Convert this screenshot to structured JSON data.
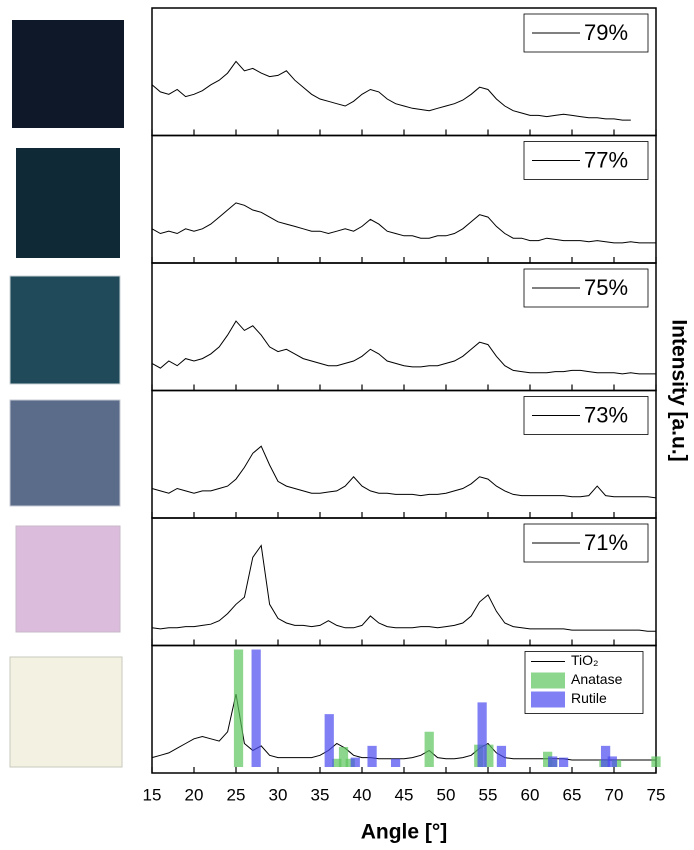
{
  "chart_data": [
    {
      "type": "line",
      "xlim": [
        15,
        75
      ],
      "xticks": [
        15,
        20,
        25,
        30,
        35,
        40,
        45,
        50,
        55,
        60,
        65,
        70,
        75
      ],
      "ylim": [
        0,
        100
      ],
      "x": [
        15,
        16,
        17,
        18,
        19,
        20,
        21,
        22,
        23,
        24,
        25,
        26,
        27,
        28,
        29,
        30,
        31,
        32,
        33,
        34,
        35,
        36,
        37,
        38,
        39,
        40,
        41,
        42,
        43,
        44,
        45,
        46,
        47,
        48,
        49,
        50,
        51,
        52,
        53,
        54,
        55,
        56,
        57,
        58,
        59,
        60,
        61,
        62,
        63,
        64,
        65,
        66,
        67,
        68,
        69,
        70,
        71,
        72,
        73,
        74,
        75
      ],
      "series": [
        {
          "name": "79%",
          "color": "#000000",
          "values": [
            38,
            32,
            30,
            34,
            28,
            30,
            33,
            38,
            42,
            48,
            58,
            50,
            52,
            48,
            45,
            46,
            50,
            42,
            36,
            30,
            26,
            24,
            22,
            20,
            24,
            30,
            34,
            32,
            26,
            22,
            20,
            18,
            17,
            16,
            18,
            20,
            22,
            25,
            30,
            36,
            34,
            26,
            20,
            16,
            14,
            12,
            12,
            11,
            12,
            13,
            12,
            11,
            10,
            10,
            9,
            9,
            8,
            8,
            null,
            null,
            null
          ]
        }
      ]
    },
    {
      "type": "line",
      "xlim": [
        15,
        75
      ],
      "xticks": [
        15,
        20,
        25,
        30,
        35,
        40,
        45,
        50,
        55,
        60,
        65,
        70,
        75
      ],
      "ylim": [
        0,
        100
      ],
      "x": [
        15,
        16,
        17,
        18,
        19,
        20,
        21,
        22,
        23,
        24,
        25,
        26,
        27,
        28,
        29,
        30,
        31,
        32,
        33,
        34,
        35,
        36,
        37,
        38,
        39,
        40,
        41,
        42,
        43,
        44,
        45,
        46,
        47,
        48,
        49,
        50,
        51,
        52,
        53,
        54,
        55,
        56,
        57,
        58,
        59,
        60,
        61,
        62,
        63,
        64,
        65,
        66,
        67,
        68,
        69,
        70,
        71,
        72,
        73,
        74,
        75
      ],
      "series": [
        {
          "name": "77%",
          "color": "#000000",
          "values": [
            24,
            20,
            22,
            20,
            24,
            22,
            24,
            28,
            34,
            40,
            46,
            44,
            40,
            38,
            34,
            30,
            28,
            26,
            24,
            22,
            22,
            20,
            22,
            24,
            22,
            26,
            32,
            28,
            22,
            20,
            18,
            18,
            16,
            16,
            18,
            18,
            20,
            24,
            30,
            36,
            34,
            26,
            20,
            16,
            16,
            14,
            14,
            16,
            15,
            14,
            14,
            14,
            13,
            14,
            13,
            12,
            12,
            13,
            12,
            12,
            12
          ]
        }
      ]
    },
    {
      "type": "line",
      "xlim": [
        15,
        75
      ],
      "xticks": [
        15,
        20,
        25,
        30,
        35,
        40,
        45,
        50,
        55,
        60,
        65,
        70,
        75
      ],
      "ylim": [
        0,
        100
      ],
      "x": [
        15,
        16,
        17,
        18,
        19,
        20,
        21,
        22,
        23,
        24,
        25,
        26,
        27,
        28,
        29,
        30,
        31,
        32,
        33,
        34,
        35,
        36,
        37,
        38,
        39,
        40,
        41,
        42,
        43,
        44,
        45,
        46,
        47,
        48,
        49,
        50,
        51,
        52,
        53,
        54,
        55,
        56,
        57,
        58,
        59,
        60,
        61,
        62,
        63,
        64,
        65,
        66,
        67,
        68,
        69,
        70,
        71,
        72,
        73,
        74,
        75
      ],
      "series": [
        {
          "name": "75%",
          "color": "#000000",
          "values": [
            18,
            14,
            20,
            16,
            22,
            20,
            22,
            26,
            32,
            42,
            54,
            46,
            50,
            42,
            32,
            28,
            30,
            26,
            22,
            20,
            18,
            16,
            16,
            18,
            20,
            24,
            30,
            26,
            20,
            18,
            16,
            15,
            15,
            16,
            16,
            18,
            20,
            24,
            30,
            36,
            34,
            24,
            16,
            12,
            11,
            10,
            10,
            10,
            11,
            11,
            12,
            12,
            11,
            10,
            10,
            10,
            9,
            10,
            9,
            9,
            9
          ]
        }
      ]
    },
    {
      "type": "line",
      "xlim": [
        15,
        75
      ],
      "xticks": [
        15,
        20,
        25,
        30,
        35,
        40,
        45,
        50,
        55,
        60,
        65,
        70,
        75
      ],
      "ylim": [
        0,
        100
      ],
      "x": [
        15,
        16,
        17,
        18,
        19,
        20,
        21,
        22,
        23,
        24,
        25,
        26,
        27,
        28,
        29,
        30,
        31,
        32,
        33,
        34,
        35,
        36,
        37,
        38,
        39,
        40,
        41,
        42,
        43,
        44,
        45,
        46,
        47,
        48,
        49,
        50,
        51,
        52,
        53,
        54,
        55,
        56,
        57,
        58,
        59,
        60,
        61,
        62,
        63,
        64,
        65,
        66,
        67,
        68,
        69,
        70,
        71,
        72,
        73,
        74,
        75
      ],
      "series": [
        {
          "name": "73%",
          "color": "#000000",
          "values": [
            20,
            18,
            16,
            20,
            18,
            16,
            18,
            18,
            20,
            22,
            28,
            38,
            50,
            56,
            40,
            26,
            22,
            20,
            18,
            16,
            16,
            17,
            18,
            22,
            30,
            22,
            18,
            16,
            16,
            15,
            15,
            15,
            14,
            15,
            15,
            16,
            18,
            20,
            24,
            30,
            28,
            22,
            18,
            15,
            14,
            14,
            14,
            14,
            14,
            14,
            13,
            13,
            14,
            22,
            14,
            13,
            13,
            13,
            13,
            13,
            12
          ]
        }
      ]
    },
    {
      "type": "line",
      "xlim": [
        15,
        75
      ],
      "xticks": [
        15,
        20,
        25,
        30,
        35,
        40,
        45,
        50,
        55,
        60,
        65,
        70,
        75
      ],
      "ylim": [
        0,
        100
      ],
      "x": [
        15,
        16,
        17,
        18,
        19,
        20,
        21,
        22,
        23,
        24,
        25,
        26,
        27,
        28,
        29,
        30,
        31,
        32,
        33,
        34,
        35,
        36,
        37,
        38,
        39,
        40,
        41,
        42,
        43,
        44,
        45,
        46,
        47,
        48,
        49,
        50,
        51,
        52,
        53,
        54,
        55,
        56,
        57,
        58,
        59,
        60,
        61,
        62,
        63,
        64,
        65,
        66,
        67,
        68,
        69,
        70,
        71,
        72,
        73,
        74,
        75
      ],
      "series": [
        {
          "name": "71%",
          "color": "#000000",
          "values": [
            10,
            9,
            10,
            10,
            11,
            11,
            12,
            13,
            16,
            22,
            30,
            36,
            70,
            80,
            30,
            18,
            14,
            12,
            12,
            11,
            12,
            16,
            12,
            10,
            10,
            12,
            20,
            14,
            11,
            10,
            10,
            10,
            11,
            11,
            10,
            11,
            12,
            14,
            20,
            32,
            38,
            24,
            14,
            11,
            10,
            9,
            9,
            9,
            9,
            9,
            8,
            8,
            8,
            8,
            8,
            8,
            8,
            8,
            8,
            7,
            7
          ]
        }
      ]
    },
    {
      "type": "line",
      "xlim": [
        15,
        75
      ],
      "xticks": [
        15,
        20,
        25,
        30,
        35,
        40,
        45,
        50,
        55,
        60,
        65,
        70,
        75
      ],
      "ylim": [
        0,
        100
      ],
      "xlabel": "Angle [°]",
      "ylabel": "Intensity [a.u.]",
      "x": [
        15,
        16,
        17,
        18,
        19,
        20,
        21,
        22,
        23,
        24,
        25,
        26,
        27,
        28,
        29,
        30,
        31,
        32,
        33,
        34,
        35,
        36,
        37,
        38,
        39,
        40,
        41,
        42,
        43,
        44,
        45,
        46,
        47,
        48,
        49,
        50,
        51,
        52,
        53,
        54,
        55,
        56,
        57,
        58,
        59,
        60,
        61,
        62,
        63,
        64,
        65,
        66,
        67,
        68,
        69,
        70,
        71,
        72,
        73,
        74,
        75
      ],
      "series": [
        {
          "name": "TiO₂",
          "color": "#000000",
          "values": [
            8,
            10,
            12,
            16,
            20,
            24,
            26,
            24,
            22,
            30,
            62,
            20,
            14,
            18,
            10,
            8,
            8,
            8,
            8,
            8,
            10,
            14,
            20,
            16,
            10,
            8,
            8,
            7,
            7,
            7,
            7,
            8,
            10,
            14,
            8,
            7,
            7,
            8,
            10,
            16,
            20,
            12,
            8,
            7,
            7,
            7,
            7,
            7,
            7,
            7,
            6,
            6,
            6,
            6,
            6,
            6,
            6,
            6,
            6,
            6,
            6
          ]
        },
        {
          "name": "Anatase",
          "type": "bar",
          "color": "#5cc45c",
          "x": [
            25.3,
            37.0,
            37.8,
            38.6,
            48.0,
            53.9,
            55.1,
            62.1,
            62.7,
            68.8,
            70.3,
            75.0
          ],
          "values": [
            100,
            7,
            17,
            7,
            30,
            19,
            19,
            13,
            6,
            6,
            6,
            9
          ]
        },
        {
          "name": "Rutile",
          "type": "bar",
          "color": "#4a4af0",
          "x": [
            27.4,
            36.1,
            39.2,
            41.2,
            44.0,
            54.3,
            56.6,
            62.7,
            64.0,
            69.0,
            69.8
          ],
          "values": [
            100,
            45,
            8,
            18,
            7,
            55,
            18,
            9,
            8,
            18,
            9
          ]
        }
      ]
    }
  ]
}
